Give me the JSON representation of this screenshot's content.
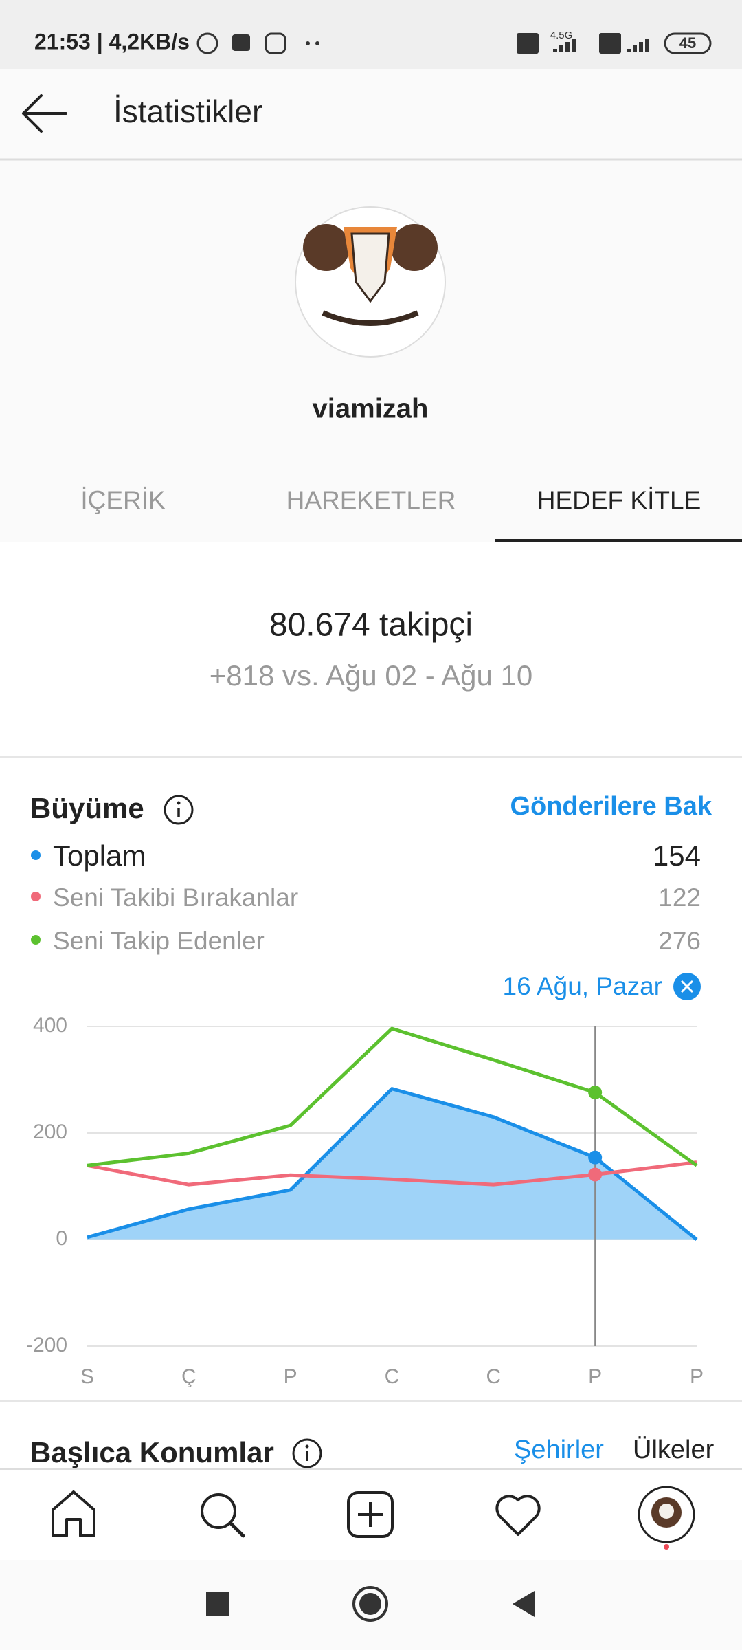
{
  "status_bar": {
    "time": "21:53 | 4,2KB/s",
    "network": "4.5G",
    "battery": "45"
  },
  "header": {
    "title": "İstatistikler"
  },
  "profile": {
    "username": "viamizah"
  },
  "tabs": [
    "İÇERİK",
    "HAREKETLER",
    "HEDEF KİTLE"
  ],
  "summary": {
    "followers": "80.674 takipçi",
    "comparison": "+818 vs. Ağu 02 - Ağu 10"
  },
  "growth": {
    "title": "Büyüme",
    "link": "Gönderilere Bak"
  },
  "chart_data": {
    "type": "line",
    "categories": [
      "S",
      "Ç",
      "P",
      "C",
      "C",
      "P",
      "P"
    ],
    "series": [
      {
        "name": "Toplam",
        "color": "#1a8fe8",
        "area": true,
        "values": [
          4,
          57,
          93,
          283,
          230,
          154,
          0
        ]
      },
      {
        "name": "Seni Takibi Bırakanlar",
        "color": "#f06a7a",
        "values": [
          139,
          103,
          121,
          113,
          103,
          122,
          145
        ]
      },
      {
        "name": "Seni Takip Edenler",
        "color": "#5cc12f",
        "values": [
          139,
          162,
          214,
          396,
          337,
          276,
          139
        ]
      }
    ],
    "selected_index": 5,
    "selected_label": "16 Ağu, Pazar",
    "ylim": [
      -200,
      400
    ],
    "yticks": [
      -200,
      0,
      200,
      400
    ],
    "grid": true
  },
  "locations": {
    "title": "Başlıca Konumlar",
    "tabs": [
      "Şehirler",
      "Ülkeler"
    ]
  }
}
